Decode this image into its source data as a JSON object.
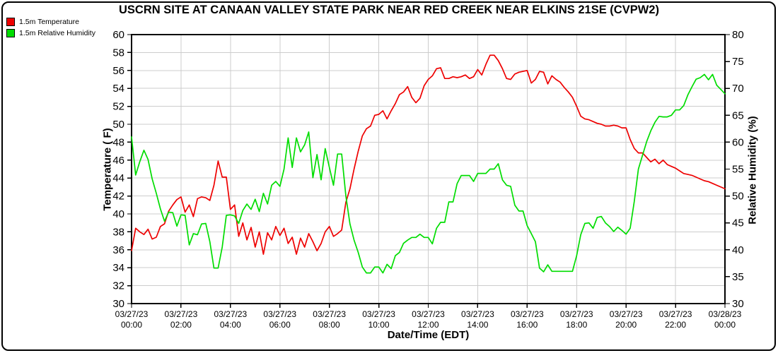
{
  "chart_data": {
    "type": "line",
    "title": "USCRN SITE AT CANAAN VALLEY STATE PARK NEAR RED CREEK NEAR ELKINS 21SE (CVPW2)",
    "xlabel": "Date/Time (EDT)",
    "grid": true,
    "grid_color": "#cccccc",
    "axis_color": "#000000",
    "background_color": "#ffffff",
    "legend": [
      {
        "label": "1.5m Temperature",
        "color": "#ee0000",
        "series": "temperature"
      },
      {
        "label": "1.5m Relative Humidity",
        "color": "#00dd00",
        "series": "humidity"
      }
    ],
    "y_left": {
      "label": "Temperature ( F)",
      "min": 30,
      "max": 60,
      "tick_step": 2,
      "ticks": [
        60,
        58,
        56,
        54,
        52,
        50,
        48,
        46,
        44,
        42,
        40,
        38,
        36,
        34,
        32,
        30
      ]
    },
    "y_right": {
      "label": "Relative Humidity (%)",
      "min": 30,
      "max": 80,
      "tick_step": 5,
      "ticks": [
        80,
        75,
        70,
        65,
        60,
        55,
        50,
        45,
        40,
        35,
        30
      ]
    },
    "x_axis": {
      "unit": "hours",
      "start_hour": 0,
      "end_hour": 24,
      "tick_interval_hours": 2,
      "tick_labels": [
        {
          "date": "03/27/23",
          "time": "00:00"
        },
        {
          "date": "03/27/23",
          "time": "02:00"
        },
        {
          "date": "03/27/23",
          "time": "04:00"
        },
        {
          "date": "03/27/23",
          "time": "06:00"
        },
        {
          "date": "03/27/23",
          "time": "08:00"
        },
        {
          "date": "03/27/23",
          "time": "10:00"
        },
        {
          "date": "03/27/23",
          "time": "12:00"
        },
        {
          "date": "03/27/23",
          "time": "14:00"
        },
        {
          "date": "03/27/23",
          "time": "16:00"
        },
        {
          "date": "03/27/23",
          "time": "18:00"
        },
        {
          "date": "03/27/23",
          "time": "20:00"
        },
        {
          "date": "03/27/23",
          "time": "22:00"
        },
        {
          "date": "03/28/23",
          "time": "00:00"
        }
      ]
    },
    "sample_interval_minutes": 10,
    "series": [
      {
        "name": "1.5m Temperature",
        "id": "temperature",
        "axis": "left",
        "units": "F",
        "color": "#ee0000",
        "values": [
          35.9,
          38.4,
          38.0,
          37.7,
          38.3,
          37.2,
          37.4,
          38.6,
          38.9,
          40.3,
          41.0,
          41.6,
          41.9,
          40.2,
          41.0,
          39.7,
          41.7,
          41.9,
          41.8,
          41.5,
          43.2,
          45.9,
          44.1,
          44.1,
          40.5,
          41.0,
          37.5,
          39.0,
          37.1,
          38.5,
          36.3,
          38.0,
          35.5,
          37.9,
          37.1,
          38.6,
          37.6,
          38.4,
          36.7,
          37.4,
          35.5,
          37.3,
          36.3,
          37.8,
          36.9,
          35.9,
          36.7,
          38.0,
          38.6,
          37.5,
          37.8,
          38.2,
          41.3,
          42.8,
          45.0,
          47.0,
          48.7,
          49.5,
          49.8,
          51.0,
          51.1,
          51.5,
          50.6,
          51.5,
          52.3,
          53.3,
          53.6,
          54.2,
          53.0,
          52.4,
          52.9,
          54.3,
          55.0,
          55.4,
          56.2,
          56.3,
          55.1,
          55.1,
          55.3,
          55.2,
          55.3,
          55.5,
          55.1,
          55.3,
          56.1,
          55.5,
          56.7,
          57.7,
          57.7,
          57.1,
          56.2,
          55.1,
          55.0,
          55.6,
          55.8,
          55.9,
          56.0,
          54.6,
          55.0,
          55.9,
          55.8,
          54.5,
          55.4,
          55.0,
          54.7,
          54.1,
          53.6,
          53.0,
          52.0,
          50.9,
          50.6,
          50.5,
          50.3,
          50.1,
          50.0,
          49.8,
          49.8,
          49.9,
          49.8,
          49.6,
          49.6,
          48.3,
          47.3,
          46.8,
          46.8,
          46.3,
          45.8,
          46.1,
          45.6,
          46.0,
          45.5,
          45.3,
          45.1,
          44.8,
          44.5,
          44.4,
          44.3,
          44.1,
          43.9,
          43.7,
          43.6,
          43.4,
          43.2,
          43.0,
          42.8
        ]
      },
      {
        "name": "1.5m Relative Humidity",
        "id": "humidity",
        "axis": "right",
        "units": "%",
        "color": "#00dd00",
        "values": [
          61.0,
          53.9,
          56.4,
          58.5,
          56.8,
          53.2,
          50.5,
          47.6,
          45.3,
          47.0,
          46.9,
          44.4,
          46.5,
          46.4,
          40.9,
          43.0,
          42.8,
          44.8,
          44.9,
          41.5,
          36.6,
          36.6,
          40.5,
          46.4,
          46.5,
          46.3,
          44.9,
          47.3,
          48.5,
          47.5,
          49.4,
          47.1,
          50.5,
          48.5,
          52.0,
          52.7,
          51.8,
          55.0,
          60.8,
          55.3,
          60.8,
          58.2,
          59.5,
          61.9,
          53.4,
          57.7,
          53.0,
          58.8,
          55.3,
          52.0,
          57.8,
          57.8,
          50.0,
          44.8,
          41.8,
          39.5,
          36.8,
          35.7,
          35.7,
          36.8,
          36.8,
          35.7,
          37.3,
          36.5,
          38.9,
          39.5,
          41.2,
          41.8,
          42.3,
          42.3,
          42.9,
          42.3,
          42.3,
          41.1,
          44.0,
          45.1,
          45.1,
          48.9,
          48.9,
          52.3,
          53.8,
          53.8,
          53.8,
          52.7,
          54.2,
          54.2,
          54.2,
          55.0,
          55.0,
          56.0,
          53.0,
          52.0,
          51.8,
          48.3,
          47.2,
          47.2,
          44.5,
          43.0,
          41.5,
          36.6,
          35.9,
          37.2,
          36.0,
          36.0,
          36.0,
          36.0,
          36.0,
          36.0,
          38.9,
          42.8,
          44.9,
          45.0,
          44.0,
          46.0,
          46.2,
          45.0,
          44.3,
          43.4,
          44.2,
          43.6,
          42.9,
          44.0,
          49.0,
          55.0,
          57.6,
          60.1,
          62.1,
          63.7,
          64.8,
          64.7,
          64.7,
          65.0,
          66.0,
          66.0,
          66.8,
          68.8,
          70.3,
          71.7,
          72.0,
          72.6,
          71.6,
          72.6,
          70.6,
          69.8,
          69.0
        ]
      }
    ]
  }
}
